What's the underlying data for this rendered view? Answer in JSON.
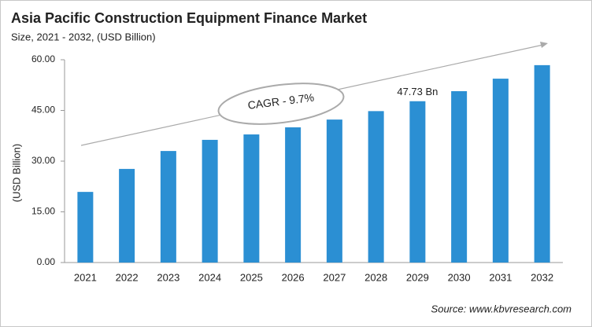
{
  "chart_data": {
    "type": "bar",
    "title": "Asia Pacific Construction Equipment Finance Market",
    "subtitle": "Size, 2021 - 2032, (USD Billion)",
    "y_label": "(USD Billion)",
    "annotation": "CAGR - 9.7%",
    "source": "Source: www.kbvresearch.com",
    "categories": [
      "2021",
      "2022",
      "2023",
      "2024",
      "2025",
      "2026",
      "2027",
      "2028",
      "2029",
      "2030",
      "2031",
      "2032"
    ],
    "values": [
      20.9,
      27.7,
      33.0,
      36.3,
      37.9,
      40.0,
      42.3,
      44.8,
      47.73,
      50.7,
      54.4,
      58.4
    ],
    "value_labels": [
      null,
      null,
      null,
      null,
      null,
      null,
      null,
      null,
      "47.73 Bn",
      null,
      null,
      null
    ],
    "color": "#2b8fd3",
    "ylim": [
      0,
      60
    ],
    "yticks": [
      {
        "value": 0,
        "label": "0.00"
      },
      {
        "value": 15,
        "label": "15.00"
      },
      {
        "value": 30,
        "label": "30.00"
      },
      {
        "value": 45,
        "label": "45.00"
      },
      {
        "value": 60,
        "label": "60.00"
      }
    ],
    "grid": false
  }
}
